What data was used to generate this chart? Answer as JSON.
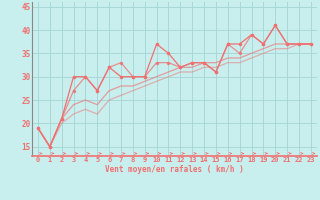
{
  "xlabel": "Vent moyen/en rafales ( km/h )",
  "background_color": "#c8eeed",
  "grid_color": "#a8d8d8",
  "line_color": "#f07070",
  "xlim": [
    -0.5,
    23.5
  ],
  "ylim": [
    13,
    46
  ],
  "yticks": [
    15,
    20,
    25,
    30,
    35,
    40,
    45
  ],
  "xticks": [
    0,
    1,
    2,
    3,
    4,
    5,
    6,
    7,
    8,
    9,
    10,
    11,
    12,
    13,
    14,
    15,
    16,
    17,
    18,
    19,
    20,
    21,
    22,
    23
  ],
  "line1_y": [
    19,
    15,
    21,
    30,
    30,
    27,
    32,
    30,
    30,
    30,
    37,
    35,
    32,
    33,
    33,
    31,
    37,
    37,
    39,
    37,
    41,
    37,
    37,
    37
  ],
  "line2_y": [
    19,
    15,
    21,
    27,
    30,
    27,
    32,
    33,
    30,
    30,
    33,
    33,
    32,
    33,
    33,
    31,
    37,
    35,
    39,
    37,
    41,
    37,
    37,
    37
  ],
  "line3_y": [
    19,
    15,
    21,
    24,
    25,
    24,
    27,
    28,
    28,
    29,
    30,
    31,
    32,
    32,
    33,
    33,
    34,
    34,
    35,
    36,
    37,
    37,
    37,
    37
  ],
  "line4_y": [
    19,
    15,
    20,
    22,
    23,
    22,
    25,
    26,
    27,
    28,
    29,
    30,
    31,
    31,
    32,
    32,
    33,
    33,
    34,
    35,
    36,
    36,
    37,
    37
  ]
}
